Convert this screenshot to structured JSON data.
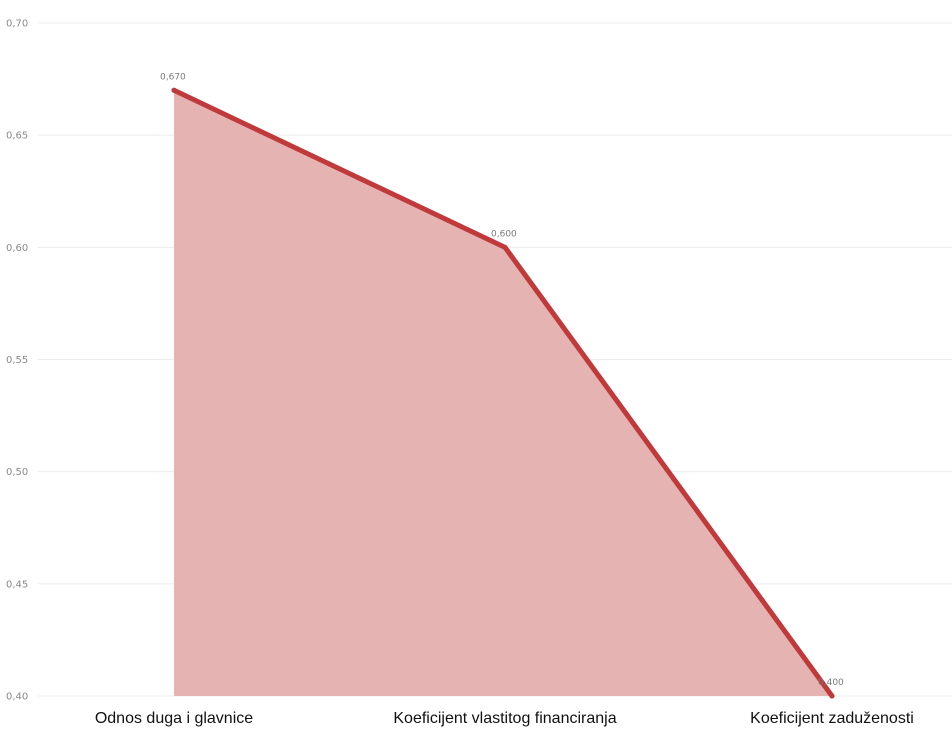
{
  "chart_data": {
    "type": "area",
    "categories": [
      "Odnos duga i glavnice",
      "Koeficijent vlastitog financiranja",
      "Koeficijent zaduženosti"
    ],
    "values": [
      0.67,
      0.6,
      0.4
    ],
    "data_labels": [
      "0,670",
      "0,600",
      "0,400"
    ],
    "y_ticks": [
      "0,40",
      "0,45",
      "0,50",
      "0,55",
      "0,60",
      "0,65",
      "0,70"
    ],
    "ylim": [
      0.4,
      0.7
    ],
    "grid": true,
    "line_color": "#c0393b",
    "area_color": "#e6b3b3"
  }
}
